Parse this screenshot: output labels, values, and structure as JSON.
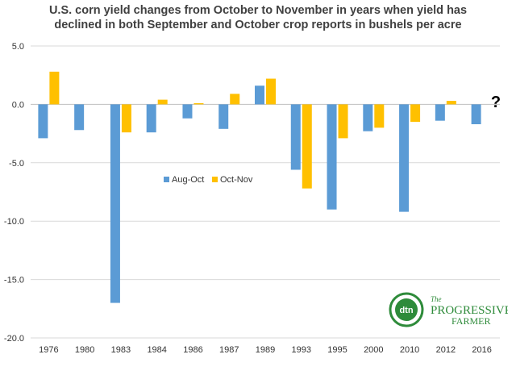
{
  "chart_data": {
    "type": "bar",
    "title_line1": "U.S. corn yield changes from October to November in years when yield has",
    "title_line2": "declined in both September and October crop reports in bushels per acre",
    "categories": [
      "1976",
      "1980",
      "1983",
      "1984",
      "1986",
      "1987",
      "1989",
      "1993",
      "1995",
      "2000",
      "2010",
      "2012",
      "2016"
    ],
    "series": [
      {
        "name": "Aug-Oct",
        "color": "#5B9BD5",
        "values": [
          -2.9,
          -2.2,
          -17.0,
          -2.4,
          -1.2,
          -2.1,
          1.6,
          -5.6,
          -9.0,
          -2.3,
          -9.2,
          -1.4,
          -1.7
        ]
      },
      {
        "name": "Oct-Nov",
        "color": "#FFC000",
        "values": [
          2.8,
          null,
          -2.4,
          0.4,
          0.1,
          0.9,
          2.2,
          -7.2,
          -2.9,
          -2.0,
          -1.5,
          0.3,
          null
        ]
      }
    ],
    "ylim": [
      -20.0,
      5.0
    ],
    "yticks": [
      "5.0",
      "0.0",
      "-5.0",
      "-10.0",
      "-15.0",
      "-20.0"
    ],
    "ytick_values": [
      5,
      0,
      -5,
      -10,
      -15,
      -20
    ],
    "annotation": "?",
    "grid": "horizontal",
    "legend_placement": "inside-center-left"
  },
  "logo": {
    "badge_text": "dtn",
    "brand_line1": "PROGRESSIVE",
    "brand_line2": "FARMER",
    "brand_prefix": "The",
    "badge_color": "#2e8b3a",
    "brand_color": "#2e8b3a"
  }
}
